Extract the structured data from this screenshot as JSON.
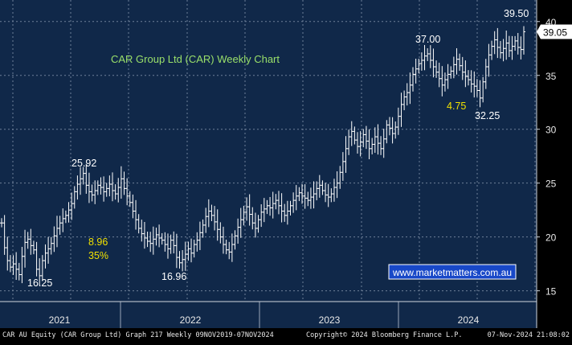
{
  "chart_data": {
    "type": "line",
    "title": "CAR Group Ltd (CAR) Weekly Chart",
    "ylim": [
      14,
      42
    ],
    "yticks": [
      15,
      20,
      25,
      30,
      35,
      40
    ],
    "x_labels": [
      "2021",
      "2022",
      "2023",
      "2024"
    ],
    "grid": true,
    "last_value": "39.05",
    "series": [
      {
        "values": [
          21.3,
          19.0,
          17.8,
          17.2,
          17.5,
          17.0,
          16.5,
          18.2,
          19.5,
          19.8,
          19.2,
          18.8,
          17.0,
          16.4,
          17.8,
          18.5,
          18.9,
          19.4,
          20.1,
          20.8,
          21.3,
          21.7,
          22.0,
          22.5,
          23.1,
          24.2,
          24.9,
          25.4,
          25.9,
          24.8,
          24.2,
          23.9,
          24.3,
          24.8,
          24.6,
          24.2,
          24.5,
          24.9,
          24.3,
          24.0,
          24.6,
          25.4,
          24.5,
          23.8,
          23.2,
          22.4,
          21.6,
          20.8,
          20.3,
          19.9,
          19.6,
          19.4,
          19.8,
          20.2,
          19.9,
          19.7,
          19.3,
          18.9,
          19.7,
          19.2,
          18.1,
          17.6,
          17.9,
          18.4,
          18.9,
          18.5,
          19.3,
          19.7,
          20.4,
          21.1,
          21.9,
          22.4,
          22.0,
          21.4,
          20.7,
          20.0,
          19.3,
          18.8,
          18.6,
          19.3,
          20.1,
          20.9,
          21.6,
          22.3,
          22.8,
          22.1,
          21.3,
          20.8,
          21.6,
          22.3,
          22.6,
          22.9,
          22.7,
          23.1,
          23.4,
          22.9,
          22.4,
          22.0,
          22.4,
          22.9,
          23.4,
          23.8,
          24.1,
          23.8,
          23.6,
          23.4,
          23.7,
          24.0,
          24.5,
          24.8,
          24.3,
          23.9,
          23.7,
          24.0,
          24.6,
          25.0,
          26.0,
          27.0,
          28.2,
          29.3,
          29.8,
          29.0,
          28.4,
          28.8,
          29.5,
          28.9,
          28.2,
          28.6,
          29.3,
          28.7,
          28.2,
          29.1,
          30.4,
          30.1,
          29.6,
          30.2,
          31.2,
          32.3,
          33.0,
          33.4,
          34.1,
          35.1,
          35.6,
          36.1,
          36.4,
          36.8,
          37.0,
          36.4,
          35.8,
          35.3,
          34.7,
          34.1,
          34.6,
          35.1,
          35.4,
          36.0,
          36.5,
          35.9,
          35.3,
          34.9,
          34.6,
          34.2,
          34.0,
          33.6,
          32.9,
          34.4,
          35.8,
          36.9,
          37.7,
          38.3,
          37.6,
          37.1,
          37.5,
          38.0,
          37.3,
          37.7,
          38.2,
          37.6,
          37.4,
          39.05
        ]
      }
    ],
    "annotations": [
      {
        "text": "25.92",
        "color": "#ffffff"
      },
      {
        "text": "16.25",
        "color": "#ffffff"
      },
      {
        "text": "8.96",
        "color": "#f0e000"
      },
      {
        "text": "35%",
        "color": "#f0e000"
      },
      {
        "text": "16.96",
        "color": "#ffffff"
      },
      {
        "text": "37.00",
        "color": "#ffffff"
      },
      {
        "text": "4.75",
        "color": "#f0e000"
      },
      {
        "text": "32.25",
        "color": "#ffffff"
      },
      {
        "text": "39.50",
        "color": "#ffffff"
      }
    ],
    "watermark": "www.marketmatters.com.au",
    "colors": {
      "background": "#000000",
      "plot_bg": "#102849",
      "grid": "#6e8099",
      "bars": "#ffffff",
      "title": "#9ae06a",
      "yellow_label": "#f0e000",
      "watermark_bg": "#1848c8"
    }
  },
  "footer": {
    "left": "CAR AU Equity (CAR Group Ltd) Graph 217  Weekly 09NOV2019-07NOV2024",
    "center": "Copyright© 2024 Bloomberg Finance L.P.",
    "right": "07-Nov-2024 21:08:02"
  }
}
